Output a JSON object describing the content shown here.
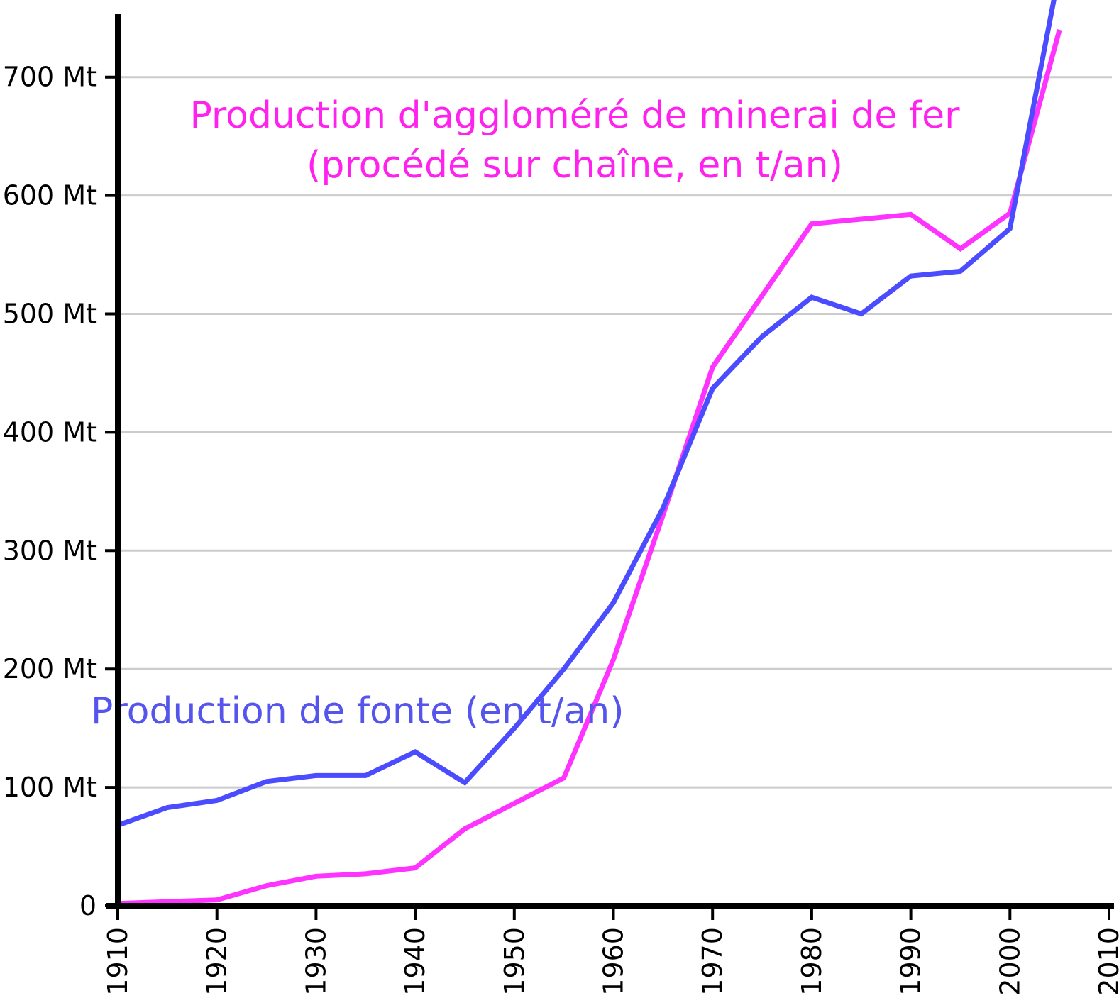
{
  "chart_data": {
    "type": "line",
    "title": "",
    "xlabel": "",
    "ylabel": "",
    "xlim": [
      1910,
      2010
    ],
    "ylim": [
      0,
      750
    ],
    "grid": true,
    "y_unit": "Mt",
    "x_ticks": [
      "1910",
      "1920",
      "1930",
      "1940",
      "1950",
      "1960",
      "1970",
      "1980",
      "1990",
      "2000",
      "2010"
    ],
    "y_ticks": [
      {
        "value": 0,
        "label": "0"
      },
      {
        "value": 100,
        "label": "100 Mt"
      },
      {
        "value": 200,
        "label": "200 Mt"
      },
      {
        "value": 300,
        "label": "300 Mt"
      },
      {
        "value": 400,
        "label": "400 Mt"
      },
      {
        "value": 500,
        "label": "500 Mt"
      },
      {
        "value": 600,
        "label": "600 Mt"
      },
      {
        "value": 700,
        "label": "700 Mt"
      }
    ],
    "series": [
      {
        "name": "Production de fonte (en t/an)",
        "color": "#4b4bff",
        "label_color": "#5555ee",
        "x": [
          1910,
          1915,
          1920,
          1925,
          1930,
          1935,
          1940,
          1945,
          1950,
          1955,
          1960,
          1965,
          1970,
          1975,
          1980,
          1985,
          1990,
          1995,
          2000,
          2005
        ],
        "values": [
          68,
          83,
          89,
          105,
          110,
          110,
          130,
          104,
          150,
          200,
          256,
          336,
          437,
          481,
          514,
          500,
          532,
          536,
          572,
          790
        ]
      },
      {
        "name": "Production d'aggloméré de minerai de fer (procédé sur chaîne, en t/an)",
        "label_lines": [
          "Production d'aggloméré de minerai de fer",
          "(procédé sur chaîne, en t/an)"
        ],
        "color": "#ff33ff",
        "label_color": "#ff22ee",
        "x": [
          1910,
          1920,
          1925,
          1930,
          1935,
          1940,
          1945,
          1955,
          1960,
          1965,
          1970,
          1980,
          1990,
          1995,
          2000,
          2005
        ],
        "values": [
          2,
          5,
          17,
          25,
          27,
          32,
          65,
          108,
          208,
          330,
          455,
          576,
          584,
          555,
          585,
          740
        ]
      }
    ]
  }
}
